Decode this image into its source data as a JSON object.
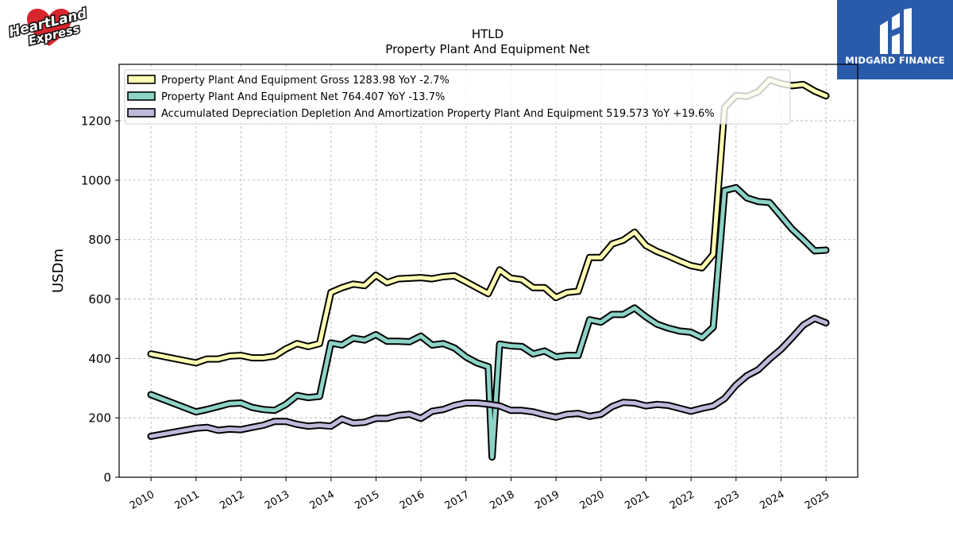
{
  "logos": {
    "left_text": "HeartLand Express",
    "right_text": "MIDGARD FINANCE"
  },
  "chart_data": {
    "type": "line",
    "title": "HTLD",
    "subtitle": "Property Plant And Equipment Net",
    "ylabel": "USDm",
    "xlabel": "",
    "ylim": [
      0,
      1390
    ],
    "yticks": [
      0,
      200,
      400,
      600,
      800,
      1000,
      1200
    ],
    "xticks": [
      "2010",
      "2011",
      "2012",
      "2013",
      "2014",
      "2015",
      "2016",
      "2017",
      "2018",
      "2019",
      "2020",
      "2021",
      "2022",
      "2023",
      "2024",
      "2025"
    ],
    "grid": true,
    "legend_position": "top-left",
    "series": [
      {
        "name": "Property Plant And Equipment Gross",
        "legend_label": "Property Plant And Equipment Gross  1283.98 YoY -2.7%",
        "color": "#ffffb3",
        "points": [
          [
            "2009-12-31",
            415
          ],
          [
            "2010-12-31",
            385
          ],
          [
            "2011-03-31",
            398
          ],
          [
            "2011-06-30",
            398
          ],
          [
            "2011-09-30",
            408
          ],
          [
            "2011-12-31",
            410
          ],
          [
            "2012-03-31",
            402
          ],
          [
            "2012-06-30",
            402
          ],
          [
            "2012-09-30",
            408
          ],
          [
            "2012-12-31",
            432
          ],
          [
            "2013-03-31",
            450
          ],
          [
            "2013-06-30",
            440
          ],
          [
            "2013-09-30",
            450
          ],
          [
            "2013-12-31",
            622
          ],
          [
            "2014-03-31",
            638
          ],
          [
            "2014-06-30",
            650
          ],
          [
            "2014-09-30",
            645
          ],
          [
            "2014-12-31",
            680
          ],
          [
            "2015-03-31",
            655
          ],
          [
            "2015-06-30",
            668
          ],
          [
            "2015-09-30",
            670
          ],
          [
            "2015-12-31",
            672
          ],
          [
            "2016-03-31",
            668
          ],
          [
            "2016-06-30",
            675
          ],
          [
            "2016-09-30",
            678
          ],
          [
            "2016-12-31",
            658
          ],
          [
            "2017-03-31",
            638
          ],
          [
            "2017-06-30",
            618
          ],
          [
            "2017-09-30",
            698
          ],
          [
            "2017-12-31",
            670
          ],
          [
            "2018-03-31",
            665
          ],
          [
            "2018-06-30",
            638
          ],
          [
            "2018-09-30",
            638
          ],
          [
            "2018-12-31",
            605
          ],
          [
            "2019-03-31",
            622
          ],
          [
            "2019-06-30",
            626
          ],
          [
            "2019-09-30",
            740
          ],
          [
            "2019-12-31",
            740
          ],
          [
            "2020-03-31",
            785
          ],
          [
            "2020-06-30",
            798
          ],
          [
            "2020-09-30",
            825
          ],
          [
            "2020-12-31",
            780
          ],
          [
            "2021-03-31",
            760
          ],
          [
            "2021-06-30",
            745
          ],
          [
            "2021-09-30",
            728
          ],
          [
            "2021-12-31",
            712
          ],
          [
            "2022-03-31",
            705
          ],
          [
            "2022-06-30",
            750
          ],
          [
            "2022-09-30",
            1245
          ],
          [
            "2022-12-31",
            1285
          ],
          [
            "2023-03-31",
            1282
          ],
          [
            "2023-06-30",
            1298
          ],
          [
            "2023-09-30",
            1338
          ],
          [
            "2023-12-31",
            1325
          ],
          [
            "2024-03-31",
            1318
          ],
          [
            "2024-06-30",
            1322
          ],
          [
            "2024-09-30",
            1300
          ],
          [
            "2024-12-31",
            1283.98
          ]
        ]
      },
      {
        "name": "Property Plant And Equipment Net",
        "legend_label": "Property Plant And Equipment Net  764.407 YoY -13.7%",
        "color": "#8dd3c7",
        "points": [
          [
            "2009-12-31",
            278
          ],
          [
            "2010-12-31",
            220
          ],
          [
            "2011-03-31",
            228
          ],
          [
            "2011-06-30",
            238
          ],
          [
            "2011-09-30",
            248
          ],
          [
            "2011-12-31",
            250
          ],
          [
            "2012-03-31",
            235
          ],
          [
            "2012-06-30",
            228
          ],
          [
            "2012-09-30",
            225
          ],
          [
            "2012-12-31",
            245
          ],
          [
            "2013-03-31",
            275
          ],
          [
            "2013-06-30",
            268
          ],
          [
            "2013-09-30",
            272
          ],
          [
            "2013-12-31",
            452
          ],
          [
            "2014-03-31",
            445
          ],
          [
            "2014-06-30",
            468
          ],
          [
            "2014-09-30",
            462
          ],
          [
            "2014-12-31",
            480
          ],
          [
            "2015-03-31",
            458
          ],
          [
            "2015-06-30",
            458
          ],
          [
            "2015-09-30",
            456
          ],
          [
            "2015-12-31",
            475
          ],
          [
            "2016-03-31",
            445
          ],
          [
            "2016-06-30",
            450
          ],
          [
            "2016-09-30",
            435
          ],
          [
            "2016-12-31",
            405
          ],
          [
            "2017-03-31",
            385
          ],
          [
            "2017-06-30",
            372
          ],
          [
            "2017-07-31",
            68
          ],
          [
            "2017-09-30",
            448
          ],
          [
            "2017-12-31",
            442
          ],
          [
            "2018-03-31",
            440
          ],
          [
            "2018-06-30",
            415
          ],
          [
            "2018-09-30",
            425
          ],
          [
            "2018-12-31",
            405
          ],
          [
            "2019-03-31",
            410
          ],
          [
            "2019-06-30",
            410
          ],
          [
            "2019-09-30",
            530
          ],
          [
            "2019-12-31",
            522
          ],
          [
            "2020-03-31",
            548
          ],
          [
            "2020-06-30",
            548
          ],
          [
            "2020-09-30",
            570
          ],
          [
            "2020-12-31",
            540
          ],
          [
            "2021-03-31",
            515
          ],
          [
            "2021-06-30",
            502
          ],
          [
            "2021-09-30",
            492
          ],
          [
            "2021-12-31",
            488
          ],
          [
            "2022-03-31",
            470
          ],
          [
            "2022-06-30",
            505
          ],
          [
            "2022-09-30",
            965
          ],
          [
            "2022-12-31",
            975
          ],
          [
            "2023-03-31",
            940
          ],
          [
            "2023-06-30",
            928
          ],
          [
            "2023-09-30",
            925
          ],
          [
            "2023-12-31",
            880
          ],
          [
            "2024-03-31",
            835
          ],
          [
            "2024-06-30",
            800
          ],
          [
            "2024-09-30",
            762
          ],
          [
            "2024-12-31",
            764.407
          ]
        ]
      },
      {
        "name": "Accumulated Depreciation Depletion And Amortization Property Plant And Equipment",
        "legend_label": "Accumulated Depreciation Depletion And Amortization Property Plant And Equipment  519.573 YoY +19.6%",
        "color": "#bebada",
        "points": [
          [
            "2009-12-31",
            138
          ],
          [
            "2010-12-31",
            165
          ],
          [
            "2011-03-31",
            168
          ],
          [
            "2011-06-30",
            158
          ],
          [
            "2011-09-30",
            162
          ],
          [
            "2011-12-31",
            160
          ],
          [
            "2012-03-31",
            168
          ],
          [
            "2012-06-30",
            175
          ],
          [
            "2012-09-30",
            188
          ],
          [
            "2012-12-31",
            188
          ],
          [
            "2013-03-31",
            178
          ],
          [
            "2013-06-30",
            172
          ],
          [
            "2013-09-30",
            175
          ],
          [
            "2013-12-31",
            172
          ],
          [
            "2014-03-31",
            196
          ],
          [
            "2014-06-30",
            182
          ],
          [
            "2014-09-30",
            185
          ],
          [
            "2014-12-31",
            198
          ],
          [
            "2015-03-31",
            198
          ],
          [
            "2015-06-30",
            208
          ],
          [
            "2015-09-30",
            212
          ],
          [
            "2015-12-31",
            198
          ],
          [
            "2016-03-31",
            222
          ],
          [
            "2016-06-30",
            228
          ],
          [
            "2016-09-30",
            242
          ],
          [
            "2016-12-31",
            250
          ],
          [
            "2017-03-31",
            250
          ],
          [
            "2017-06-30",
            246
          ],
          [
            "2017-09-30",
            240
          ],
          [
            "2017-12-31",
            225
          ],
          [
            "2018-03-31",
            225
          ],
          [
            "2018-06-30",
            220
          ],
          [
            "2018-09-30",
            210
          ],
          [
            "2018-12-31",
            202
          ],
          [
            "2019-03-31",
            212
          ],
          [
            "2019-06-30",
            215
          ],
          [
            "2019-09-30",
            205
          ],
          [
            "2019-12-31",
            212
          ],
          [
            "2020-03-31",
            238
          ],
          [
            "2020-06-30",
            252
          ],
          [
            "2020-09-30",
            250
          ],
          [
            "2020-12-31",
            240
          ],
          [
            "2021-03-31",
            245
          ],
          [
            "2021-06-30",
            242
          ],
          [
            "2021-09-30",
            232
          ],
          [
            "2021-12-31",
            222
          ],
          [
            "2022-03-31",
            232
          ],
          [
            "2022-06-30",
            240
          ],
          [
            "2022-09-30",
            265
          ],
          [
            "2022-12-31",
            310
          ],
          [
            "2023-03-31",
            342
          ],
          [
            "2023-06-30",
            362
          ],
          [
            "2023-09-30",
            398
          ],
          [
            "2023-12-31",
            430
          ],
          [
            "2024-03-31",
            470
          ],
          [
            "2024-06-30",
            512
          ],
          [
            "2024-09-30",
            535
          ],
          [
            "2024-12-31",
            519.573
          ]
        ]
      }
    ]
  }
}
